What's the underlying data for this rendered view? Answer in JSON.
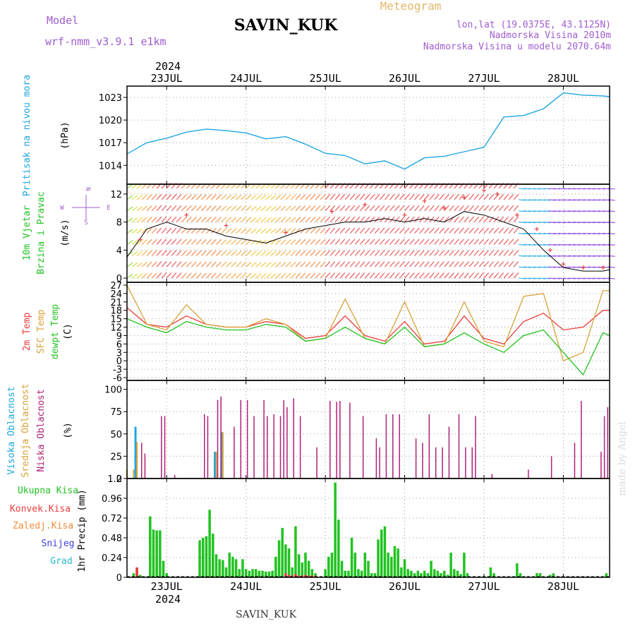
{
  "header": {
    "model_label": "Model",
    "model_name": "wrf-nmm_v3.9.1 e1km",
    "station": "SAVIN_KUK",
    "meteogram_label": "Meteogram",
    "lonlat": "lon,lat (19.0375E, 43.1125N)",
    "elevation": "Nadmorska Visina 2010m",
    "model_elevation": "Nadmorska Visina u modelu 2070.64m",
    "year": "2024",
    "footer_station": "SAVIN_KUK",
    "watermark": "made by Angel"
  },
  "colors": {
    "pressure": "#1ea7e0",
    "temp2m": "#e83c3c",
    "sfc": "#d9a23a",
    "dewpt": "#22c322",
    "cloud_high": "#1ea7e0",
    "cloud_mid": "#d9a23a",
    "cloud_low": "#b0207a",
    "precip_total": "#22c322",
    "precip_conv": "#e83c3c"
  },
  "chart_data": [
    {
      "id": "pressure",
      "type": "line",
      "title": "",
      "ylabel": "Pritisak na nivou mora",
      "unit": "(hPa)",
      "ylim": [
        1011.5,
        1024.5
      ],
      "yticks": [
        1014,
        1017,
        1020,
        1023
      ],
      "day_labels": [
        "23JUL",
        "24JUL",
        "25JUL",
        "26JUL",
        "27JUL",
        "28JUL"
      ],
      "x": [
        0,
        6,
        12,
        18,
        24,
        30,
        36,
        42,
        48,
        54,
        60,
        66,
        72,
        78,
        84,
        90,
        96,
        102,
        108,
        114,
        120,
        126,
        132,
        138,
        144,
        146
      ],
      "values": [
        1015.5,
        1017.0,
        1017.6,
        1018.4,
        1018.8,
        1018.6,
        1018.3,
        1017.5,
        1017.8,
        1016.8,
        1015.6,
        1015.3,
        1014.2,
        1014.6,
        1013.5,
        1015.0,
        1015.2,
        1015.8,
        1016.4,
        1020.4,
        1020.6,
        1021.5,
        1023.6,
        1023.3,
        1023.2,
        1023.1
      ]
    },
    {
      "id": "wind",
      "type": "line",
      "title": "",
      "ylabel": [
        "10m Vjetar",
        "Brzina i Pravac"
      ],
      "unit": "(m/s)",
      "ylim": [
        -0.6,
        13.4
      ],
      "yticks": [
        0,
        4,
        8,
        12
      ],
      "compass": {
        "n": "N",
        "s": "S",
        "e": "E",
        "w": "W"
      },
      "x": [
        0,
        6,
        12,
        18,
        24,
        30,
        36,
        42,
        48,
        54,
        60,
        66,
        72,
        78,
        84,
        90,
        96,
        102,
        108,
        114,
        120,
        126,
        132,
        138,
        144,
        146
      ],
      "values": [
        3.0,
        7.0,
        8.0,
        7.0,
        7.0,
        6.0,
        5.5,
        5.0,
        6.0,
        7.0,
        7.5,
        8.0,
        8.0,
        8.5,
        8.0,
        8.5,
        8.0,
        9.5,
        9.0,
        8.0,
        7.0,
        4.0,
        1.5,
        1.0,
        1.0,
        1.2
      ],
      "gust_x": [
        4,
        18,
        30,
        48,
        62,
        72,
        84,
        90,
        96,
        102,
        108,
        112,
        118,
        124,
        128,
        132,
        138,
        144
      ],
      "gust_values": [
        5.5,
        9.0,
        7.5,
        6.5,
        9.5,
        10.5,
        9.0,
        11.0,
        10.0,
        11.5,
        12.5,
        12.0,
        9.0,
        7.0,
        4.0,
        2.0,
        1.5,
        1.5
      ]
    },
    {
      "id": "temperature",
      "type": "line",
      "title": "",
      "ylabel": [
        "2m Temp",
        "SFC Temp",
        "dewpt Temp"
      ],
      "unit": "(C)",
      "ylim": [
        -7,
        28
      ],
      "yticks": [
        -6,
        -3,
        0,
        3,
        6,
        9,
        12,
        15,
        18,
        21,
        24,
        27
      ],
      "x": [
        0,
        6,
        12,
        18,
        24,
        30,
        36,
        42,
        48,
        54,
        60,
        66,
        72,
        78,
        84,
        90,
        96,
        102,
        108,
        114,
        120,
        126,
        132,
        138,
        144,
        146
      ],
      "series": [
        {
          "name": "2m Temp",
          "values": [
            19,
            13,
            12,
            16,
            13,
            12,
            12,
            14,
            13,
            8,
            9,
            16,
            9,
            7,
            14,
            6,
            7,
            16,
            8,
            6,
            14,
            17,
            11,
            12,
            18,
            18
          ]
        },
        {
          "name": "SFC Temp",
          "values": [
            27,
            13,
            11,
            20,
            13,
            12,
            12,
            15,
            13,
            7,
            8,
            22,
            8,
            6,
            21,
            5,
            6,
            21,
            7,
            5,
            23,
            24,
            0,
            3,
            25,
            25
          ]
        },
        {
          "name": "dewpt Temp",
          "values": [
            15,
            12,
            10,
            14,
            12,
            11,
            11,
            13,
            12,
            7,
            8,
            12,
            8,
            6,
            12,
            5,
            6,
            10,
            6,
            3,
            9,
            11,
            3,
            -5,
            10,
            9
          ]
        }
      ]
    },
    {
      "id": "clouds",
      "type": "bar",
      "title": "",
      "ylabel": [
        "Visoka Oblacnost",
        "Srednja Oblacnost",
        "Niska Oblacnost"
      ],
      "unit": "(%)",
      "ylim": [
        0,
        110
      ],
      "yticks": [
        0,
        25,
        50,
        75,
        100
      ],
      "series": [
        {
          "name": "Visoka Oblacnost",
          "x": [
            3,
            27,
            29
          ],
          "values": [
            58,
            30,
            52
          ]
        },
        {
          "name": "Srednja Oblacnost",
          "x": [
            0,
            2,
            3,
            27,
            29
          ],
          "values": [
            10,
            10,
            41,
            30,
            52
          ]
        },
        {
          "name": "Niska Oblacnost",
          "x": [
            4,
            5,
            10,
            11,
            14,
            23,
            24,
            27,
            28,
            32,
            34,
            36,
            38,
            41,
            42,
            44,
            46,
            47,
            48,
            50,
            52,
            57,
            61,
            63,
            64,
            67,
            71,
            75,
            76,
            78,
            80,
            82,
            87,
            89,
            91,
            93,
            95,
            97,
            100,
            102,
            104,
            105,
            110,
            121,
            128,
            135,
            137,
            143,
            144,
            145
          ],
          "values": [
            40,
            28,
            70,
            70,
            4,
            72,
            70,
            88,
            92,
            58,
            88,
            88,
            70,
            88,
            70,
            72,
            70,
            88,
            80,
            90,
            70,
            35,
            87,
            86,
            87,
            85,
            70,
            45,
            35,
            72,
            72,
            72,
            45,
            40,
            72,
            35,
            35,
            58,
            72,
            35,
            35,
            70,
            5,
            10,
            25,
            40,
            87,
            30,
            70,
            80
          ]
        }
      ]
    },
    {
      "id": "precip",
      "type": "bar",
      "title": "",
      "ylabel": "1hr Precip",
      "unit": "(mm)",
      "legend": [
        "Ukupna Kisa",
        "Konvek.Kisa",
        "Zaledj.Kisa",
        "Snijeg",
        "Grad"
      ],
      "ylim": [
        0,
        1.2
      ],
      "yticks": [
        0,
        0.24,
        0.48,
        0.72,
        0.96,
        1.2
      ],
      "day_labels": [
        "23JUL",
        "24JUL",
        "25JUL",
        "26JUL",
        "27JUL",
        "28JUL"
      ],
      "series": [
        {
          "name": "Ukupna Kisa",
          "x": [
            2,
            3,
            4,
            7,
            8,
            9,
            10,
            11,
            12,
            22,
            23,
            24,
            25,
            26,
            27,
            28,
            29,
            30,
            31,
            32,
            33,
            34,
            35,
            36,
            37,
            38,
            39,
            40,
            41,
            42,
            43,
            44,
            45,
            46,
            47,
            48,
            49,
            50,
            51,
            52,
            53,
            54,
            55,
            56,
            57,
            60,
            61,
            62,
            63,
            64,
            65,
            66,
            67,
            68,
            69,
            70,
            71,
            72,
            73,
            74,
            75,
            76,
            77,
            78,
            79,
            80,
            81,
            82,
            83,
            84,
            85,
            86,
            87,
            88,
            89,
            90,
            91,
            92,
            93,
            94,
            95,
            96,
            97,
            98,
            99,
            100,
            101,
            102,
            103,
            110,
            111,
            118,
            119,
            124,
            125,
            128,
            129,
            145
          ],
          "values": [
            0.05,
            0.1,
            0.03,
            0.74,
            0.58,
            0.57,
            0.57,
            0.2,
            0.05,
            0.45,
            0.48,
            0.5,
            0.82,
            0.53,
            0.28,
            0.22,
            0.21,
            0.12,
            0.3,
            0.25,
            0.22,
            0.1,
            0.22,
            0.1,
            0.08,
            0.1,
            0.1,
            0.08,
            0.08,
            0.07,
            0.07,
            0.08,
            0.25,
            0.45,
            0.6,
            0.4,
            0.35,
            0.12,
            0.62,
            0.28,
            0.18,
            0.3,
            0.2,
            0.1,
            0.05,
            0.1,
            0.25,
            0.3,
            1.15,
            0.7,
            0.2,
            0.08,
            0.08,
            0.48,
            0.3,
            0.1,
            0.08,
            0.3,
            0.2,
            0.05,
            0.05,
            0.46,
            0.58,
            0.62,
            0.3,
            0.25,
            0.38,
            0.35,
            0.12,
            0.22,
            0.1,
            0.08,
            0.05,
            0.08,
            0.05,
            0.08,
            0.05,
            0.2,
            0.1,
            0.08,
            0.05,
            0.08,
            0.03,
            0.3,
            0.1,
            0.08,
            0.04,
            0.3,
            0.05,
            0.12,
            0.05,
            0.17,
            0.05,
            0.05,
            0.05,
            0.03,
            0.05,
            0.05
          ]
        },
        {
          "name": "Konvek.Kisa",
          "x": [
            3,
            48,
            49,
            50,
            51,
            52,
            53,
            54,
            55,
            56,
            57
          ],
          "values": [
            0.12,
            0.05,
            0.03,
            0.02,
            0.04,
            0.02,
            0.02,
            0.03,
            0.02,
            0.02,
            0.02
          ]
        }
      ]
    }
  ]
}
